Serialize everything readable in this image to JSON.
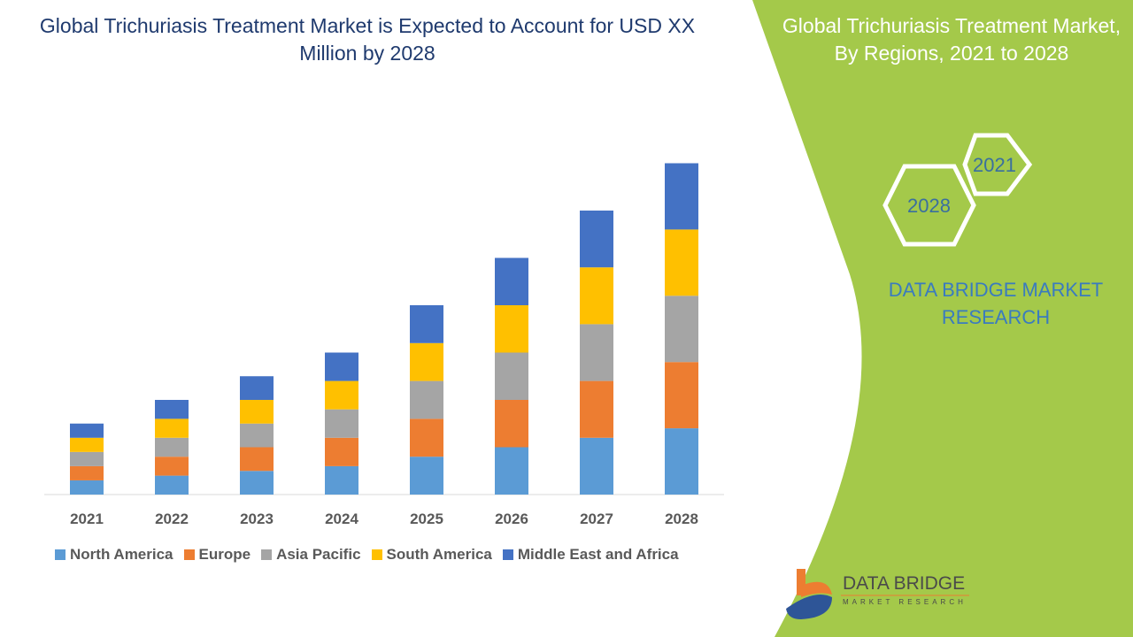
{
  "title": "Global Trichuriasis Treatment Market is Expected to Account for USD XX Million by 2028",
  "side_panel": {
    "title": "Global Trichuriasis Treatment Market, By Regions, 2021 to 2028",
    "hex_labels": [
      "2021",
      "2028"
    ],
    "brand": "DATA BRIDGE MARKET RESEARCH",
    "logo_text": "DATA BRIDGE",
    "logo_sub": "MARKET RESEARCH",
    "green": "#a4c94a"
  },
  "chart_data": {
    "type": "bar",
    "stacked": true,
    "categories": [
      "2021",
      "2022",
      "2023",
      "2024",
      "2025",
      "2026",
      "2027",
      "2028"
    ],
    "series": [
      {
        "name": "North America",
        "color": "#5b9bd5",
        "values": [
          3,
          4,
          5,
          6,
          8,
          10,
          12,
          14
        ]
      },
      {
        "name": "Europe",
        "color": "#ed7d31",
        "values": [
          3,
          4,
          5,
          6,
          8,
          10,
          12,
          14
        ]
      },
      {
        "name": "Asia Pacific",
        "color": "#a5a5a5",
        "values": [
          3,
          4,
          5,
          6,
          8,
          10,
          12,
          14
        ]
      },
      {
        "name": "South America",
        "color": "#ffc000",
        "values": [
          3,
          4,
          5,
          6,
          8,
          10,
          12,
          14
        ]
      },
      {
        "name": "Middle East and Africa",
        "color": "#4472c4",
        "values": [
          3,
          4,
          5,
          6,
          8,
          10,
          12,
          14
        ]
      }
    ],
    "legend": "bottom",
    "grid": false
  }
}
